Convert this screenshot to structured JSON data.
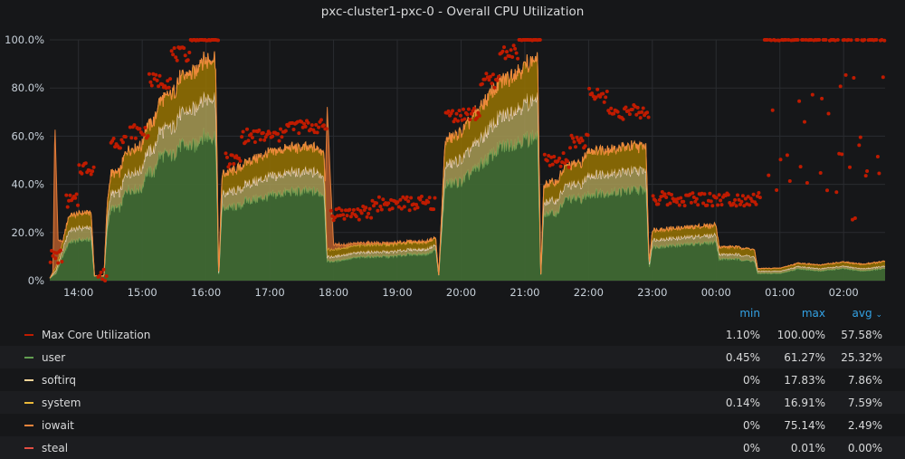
{
  "panel": {
    "title": "pxc-cluster1-pxc-0 - Overall CPU Utilization"
  },
  "colors": {
    "max_core": "#bf1b00",
    "user": "#3f6833",
    "user_line": "#629e51",
    "softirq": "#e5ac0e",
    "softirq_line": "#fce2de",
    "system": "#967302",
    "system_line": "#eab839",
    "iowait": "#ef843c",
    "grid": "#2a2c30",
    "axis_text": "#c7d0d9",
    "legend_header": "#33a2e5"
  },
  "legend": {
    "headers": {
      "min": "min",
      "max": "max",
      "avg": "avg",
      "sort_icon": "chevron-down-icon"
    },
    "rows": [
      {
        "name": "Max Core Utilization",
        "color": "#bf1b00",
        "min": "1.10%",
        "max": "100.00%",
        "avg": "57.58%"
      },
      {
        "name": "user",
        "color": "#629e51",
        "min": "0.45%",
        "max": "61.27%",
        "avg": "25.32%"
      },
      {
        "name": "softirq",
        "color": "#f4d598",
        "min": "0%",
        "max": "17.83%",
        "avg": "7.86%"
      },
      {
        "name": "system",
        "color": "#eab839",
        "min": "0.14%",
        "max": "16.91%",
        "avg": "7.59%"
      },
      {
        "name": "iowait",
        "color": "#ef843c",
        "min": "0%",
        "max": "75.14%",
        "avg": "2.49%"
      },
      {
        "name": "steal",
        "color": "#e24d42",
        "min": "0%",
        "max": "0.01%",
        "avg": "0.00%"
      }
    ]
  },
  "chart_data": {
    "type": "area",
    "title": "pxc-cluster1-pxc-0 - Overall CPU Utilization",
    "xlabel": "",
    "ylabel": "",
    "ylim": [
      0,
      100
    ],
    "xlim": [
      13.55,
      26.65
    ],
    "y_ticks": [
      "0%",
      "20.0%",
      "40.0%",
      "60.0%",
      "80.0%",
      "100.0%"
    ],
    "x_ticks": [
      {
        "t": 14,
        "label": "14:00"
      },
      {
        "t": 15,
        "label": "15:00"
      },
      {
        "t": 16,
        "label": "16:00"
      },
      {
        "t": 17,
        "label": "17:00"
      },
      {
        "t": 18,
        "label": "18:00"
      },
      {
        "t": 19,
        "label": "19:00"
      },
      {
        "t": 20,
        "label": "20:00"
      },
      {
        "t": 21,
        "label": "21:00"
      },
      {
        "t": 22,
        "label": "22:00"
      },
      {
        "t": 23,
        "label": "23:00"
      },
      {
        "t": 24,
        "label": "00:00"
      },
      {
        "t": 25,
        "label": "01:00"
      },
      {
        "t": 26,
        "label": "02:00"
      }
    ],
    "stacked": true,
    "grid": true,
    "series": [
      {
        "name": "user",
        "points": [
          [
            13.55,
            1
          ],
          [
            13.65,
            3
          ],
          [
            13.75,
            10
          ],
          [
            13.85,
            16
          ],
          [
            14.05,
            17
          ],
          [
            14.2,
            17
          ],
          [
            14.25,
            2
          ],
          [
            14.4,
            2
          ],
          [
            14.45,
            20
          ],
          [
            14.5,
            30
          ],
          [
            14.65,
            30
          ],
          [
            14.75,
            38
          ],
          [
            15.0,
            38
          ],
          [
            15.05,
            45
          ],
          [
            15.2,
            45
          ],
          [
            15.25,
            52
          ],
          [
            15.5,
            52
          ],
          [
            15.55,
            56
          ],
          [
            15.85,
            56
          ],
          [
            15.9,
            60
          ],
          [
            16.15,
            60
          ],
          [
            16.2,
            0.5
          ],
          [
            16.2,
            0.5
          ],
          [
            16.25,
            30
          ],
          [
            16.55,
            31
          ],
          [
            16.6,
            33
          ],
          [
            17.0,
            35
          ],
          [
            17.3,
            37
          ],
          [
            17.7,
            37
          ],
          [
            17.85,
            36
          ],
          [
            17.9,
            8
          ],
          [
            18.0,
            8
          ],
          [
            18.2,
            9
          ],
          [
            18.5,
            10
          ],
          [
            18.9,
            10
          ],
          [
            19.2,
            11
          ],
          [
            19.45,
            11
          ],
          [
            19.6,
            13
          ],
          [
            19.65,
            2
          ],
          [
            19.75,
            40
          ],
          [
            20.0,
            41
          ],
          [
            20.3,
            48
          ],
          [
            20.6,
            55
          ],
          [
            20.9,
            58
          ],
          [
            21.2,
            60
          ],
          [
            21.25,
            2
          ],
          [
            21.3,
            28
          ],
          [
            21.5,
            28
          ],
          [
            21.65,
            34
          ],
          [
            21.9,
            34
          ],
          [
            22.0,
            36
          ],
          [
            22.5,
            37
          ],
          [
            22.9,
            38
          ],
          [
            22.95,
            5
          ],
          [
            23.0,
            14
          ],
          [
            23.5,
            15
          ],
          [
            24.0,
            16
          ],
          [
            24.05,
            9
          ],
          [
            24.3,
            9
          ],
          [
            24.6,
            8
          ],
          [
            24.65,
            3
          ],
          [
            24.8,
            3
          ],
          [
            25.0,
            3
          ],
          [
            25.3,
            5
          ],
          [
            25.6,
            4
          ],
          [
            26.0,
            5
          ],
          [
            26.3,
            4
          ],
          [
            26.65,
            5
          ]
        ]
      },
      {
        "name": "softirq",
        "points": [
          [
            13.55,
            0
          ],
          [
            13.75,
            3
          ],
          [
            13.85,
            5
          ],
          [
            14.2,
            5
          ],
          [
            14.25,
            0
          ],
          [
            14.4,
            0
          ],
          [
            14.45,
            5
          ],
          [
            14.5,
            6
          ],
          [
            15.0,
            8
          ],
          [
            15.5,
            12
          ],
          [
            15.9,
            16
          ],
          [
            16.15,
            16
          ],
          [
            16.2,
            0
          ],
          [
            16.25,
            6
          ],
          [
            17.0,
            8
          ],
          [
            17.85,
            8
          ],
          [
            17.9,
            2
          ],
          [
            18.5,
            2
          ],
          [
            19.6,
            2
          ],
          [
            19.65,
            0
          ],
          [
            19.75,
            8
          ],
          [
            20.5,
            12
          ],
          [
            21.2,
            16
          ],
          [
            21.25,
            0
          ],
          [
            21.3,
            5
          ],
          [
            21.9,
            6
          ],
          [
            22.0,
            8
          ],
          [
            22.9,
            8
          ],
          [
            22.95,
            1
          ],
          [
            23.0,
            3
          ],
          [
            24.0,
            3
          ],
          [
            24.05,
            2
          ],
          [
            24.6,
            2
          ],
          [
            24.65,
            1
          ],
          [
            26.65,
            1
          ]
        ]
      },
      {
        "name": "system",
        "points": [
          [
            13.55,
            0
          ],
          [
            13.75,
            3
          ],
          [
            13.85,
            6
          ],
          [
            14.2,
            6
          ],
          [
            14.25,
            0
          ],
          [
            14.4,
            0
          ],
          [
            14.45,
            6
          ],
          [
            14.5,
            8
          ],
          [
            15.0,
            10
          ],
          [
            15.5,
            14
          ],
          [
            15.9,
            16
          ],
          [
            16.15,
            16
          ],
          [
            16.2,
            0
          ],
          [
            16.25,
            8
          ],
          [
            17.0,
            10
          ],
          [
            17.85,
            10
          ],
          [
            17.9,
            3
          ],
          [
            18.5,
            3
          ],
          [
            19.6,
            3
          ],
          [
            19.65,
            0
          ],
          [
            19.75,
            10
          ],
          [
            20.5,
            14
          ],
          [
            21.2,
            16
          ],
          [
            21.25,
            0
          ],
          [
            21.3,
            7
          ],
          [
            21.9,
            9
          ],
          [
            22.0,
            10
          ],
          [
            22.9,
            10
          ],
          [
            22.95,
            1
          ],
          [
            23.0,
            4
          ],
          [
            24.0,
            4
          ],
          [
            24.05,
            3
          ],
          [
            24.6,
            3
          ],
          [
            24.65,
            1
          ],
          [
            26.65,
            2
          ]
        ]
      },
      {
        "name": "iowait",
        "points": [
          [
            13.55,
            0
          ],
          [
            13.6,
            0
          ],
          [
            13.63,
            62
          ],
          [
            13.68,
            8
          ],
          [
            13.75,
            0
          ],
          [
            16.2,
            0
          ],
          [
            17.87,
            0
          ],
          [
            17.9,
            60
          ],
          [
            17.95,
            30
          ],
          [
            18.0,
            2
          ],
          [
            18.2,
            1
          ],
          [
            19.6,
            0
          ],
          [
            26.65,
            0
          ]
        ]
      }
    ],
    "max_core_utilization": {
      "name": "Max Core Utilization",
      "segments": [
        {
          "t0": 13.55,
          "t1": 13.75,
          "v": 10
        },
        {
          "t0": 13.8,
          "t1": 14.0,
          "v": 33
        },
        {
          "t0": 14.0,
          "t1": 14.25,
          "v": 47
        },
        {
          "t0": 14.3,
          "t1": 14.45,
          "v": 2
        },
        {
          "t0": 14.5,
          "t1": 14.75,
          "v": 58
        },
        {
          "t0": 14.8,
          "t1": 15.1,
          "v": 62
        },
        {
          "t0": 15.1,
          "t1": 15.45,
          "v": 83
        },
        {
          "t0": 15.45,
          "t1": 15.75,
          "v": 94
        },
        {
          "t0": 15.75,
          "t1": 16.2,
          "v": 100
        },
        {
          "t0": 16.3,
          "t1": 16.55,
          "v": 50
        },
        {
          "t0": 16.55,
          "t1": 17.2,
          "v": 60
        },
        {
          "t0": 17.2,
          "t1": 17.9,
          "v": 64
        },
        {
          "t0": 17.95,
          "t1": 18.6,
          "v": 28
        },
        {
          "t0": 18.6,
          "t1": 19.6,
          "v": 32
        },
        {
          "t0": 19.75,
          "t1": 20.3,
          "v": 69
        },
        {
          "t0": 20.3,
          "t1": 20.6,
          "v": 83
        },
        {
          "t0": 20.6,
          "t1": 20.9,
          "v": 95
        },
        {
          "t0": 20.9,
          "t1": 21.25,
          "v": 100
        },
        {
          "t0": 21.3,
          "t1": 21.7,
          "v": 50
        },
        {
          "t0": 21.7,
          "t1": 22.0,
          "v": 58
        },
        {
          "t0": 22.0,
          "t1": 22.3,
          "v": 77
        },
        {
          "t0": 22.3,
          "t1": 22.95,
          "v": 70
        },
        {
          "t0": 23.0,
          "t1": 24.7,
          "v": 34
        },
        {
          "t0": 24.75,
          "t1": 26.65,
          "v": 100
        }
      ]
    }
  }
}
